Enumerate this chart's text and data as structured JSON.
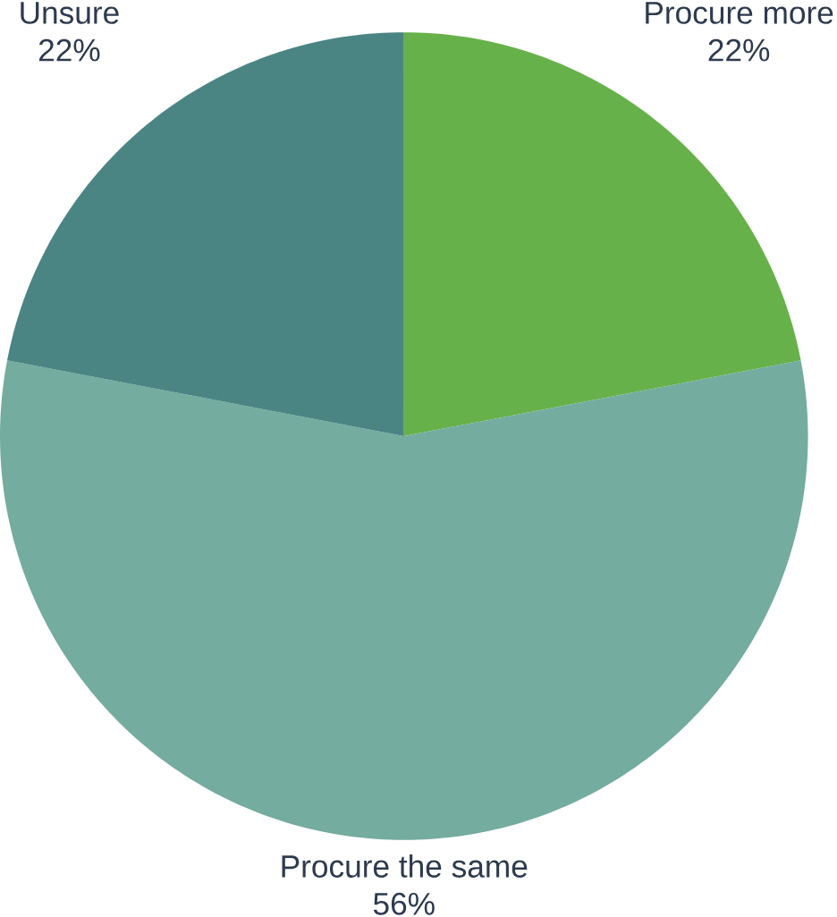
{
  "chart_data": {
    "type": "pie",
    "categories": [
      "Procure more",
      "Procure the same",
      "Unsure"
    ],
    "values": [
      22,
      56,
      22
    ],
    "value_labels": [
      "22%",
      "56%",
      "22%"
    ],
    "colors": [
      "#67b14a",
      "#74ac9f",
      "#4a8583"
    ]
  }
}
